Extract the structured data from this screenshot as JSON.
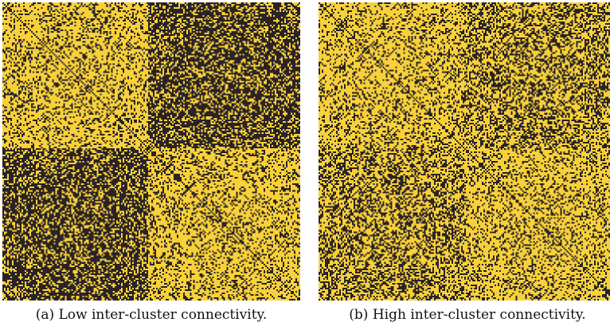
{
  "figure": {
    "colors": {
      "edge": "#F8D13A",
      "no_edge": "#2A2326"
    },
    "panels": [
      {
        "id": "a",
        "caption": "(a) Low inter-cluster connectivity.",
        "matrix_size": 186,
        "cluster_split_fraction": 0.49,
        "intra_cluster_density": 0.72,
        "inter_cluster_density": 0.33
      },
      {
        "id": "b",
        "caption": "(b) High inter-cluster connectivity.",
        "matrix_size": 186,
        "cluster_split_fraction": 0.49,
        "intra_cluster_density": 0.72,
        "inter_cluster_density": 0.55
      }
    ]
  }
}
